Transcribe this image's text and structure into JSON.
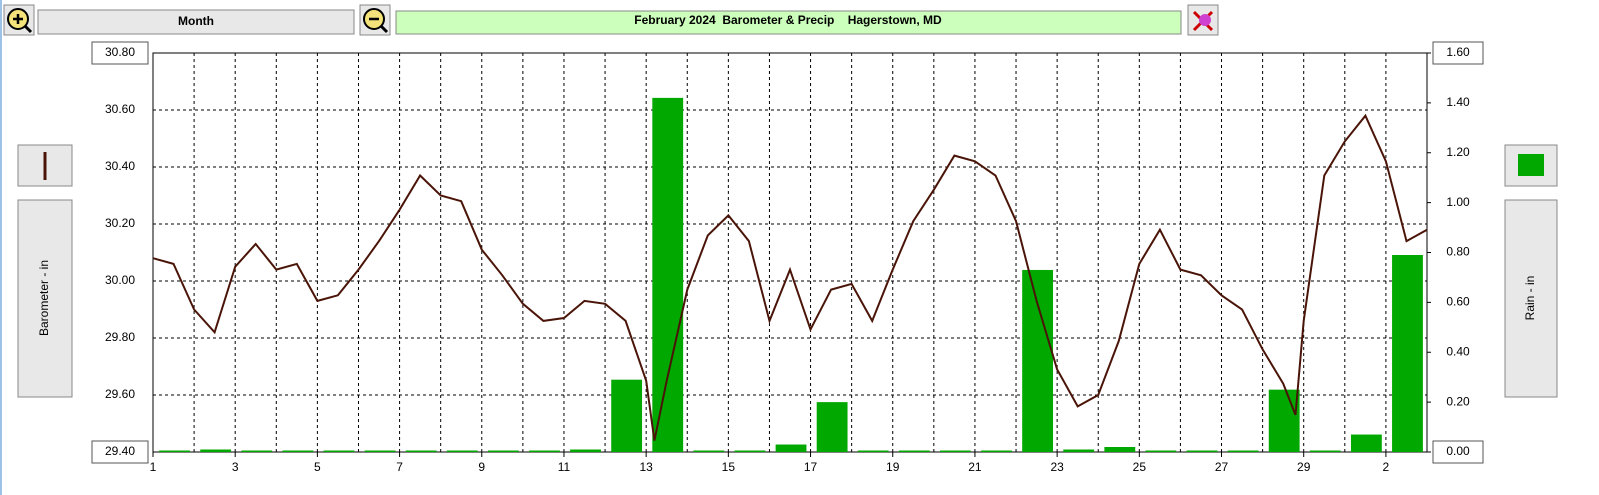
{
  "toolbar": {
    "period": "Month"
  },
  "chart_data": {
    "type": "combo",
    "title": "February 2024  Barometer & Precip    Hagerstown, MD",
    "ylabel": "Barometer - in",
    "y2label": "Rain - in",
    "xlim": [
      1,
      32
    ],
    "xticks": [
      1,
      3,
      5,
      7,
      9,
      11,
      13,
      15,
      17,
      19,
      21,
      23,
      25,
      27,
      29,
      {
        "value": 31,
        "label": "2"
      }
    ],
    "xminorticks": [
      2,
      4,
      6,
      8,
      10,
      12,
      14,
      16,
      18,
      20,
      22,
      24,
      26,
      28,
      30,
      32
    ],
    "ylim": [
      29.4,
      30.8
    ],
    "yticks": [
      {
        "value": 29.4,
        "label": "29.40"
      },
      {
        "value": 29.6,
        "label": "29.60"
      },
      {
        "value": 29.8,
        "label": "29.80"
      },
      {
        "value": 30.0,
        "label": "30.00"
      },
      {
        "value": 30.2,
        "label": "30.20"
      },
      {
        "value": 30.4,
        "label": "30.40"
      },
      {
        "value": 30.6,
        "label": "30.60"
      },
      {
        "value": 30.8,
        "label": "30.80"
      }
    ],
    "y2lim": [
      0,
      1.6
    ],
    "y2ticks": [
      {
        "value": 0,
        "label": "0.00"
      },
      {
        "value": 0.2,
        "label": "0.20"
      },
      {
        "value": 0.4,
        "label": "0.40"
      },
      {
        "value": 0.6,
        "label": "0.60"
      },
      {
        "value": 0.8,
        "label": "0.80"
      },
      {
        "value": 1.0,
        "label": "1.00"
      },
      {
        "value": 1.2,
        "label": "1.20"
      },
      {
        "value": 1.4,
        "label": "1.40"
      },
      {
        "value": 1.6,
        "label": "1.60"
      }
    ],
    "grid": true,
    "series": [
      {
        "type": "line",
        "axis": "y",
        "color": "#4a1508",
        "x": [
          1,
          1.5,
          2,
          2.5,
          3,
          3.5,
          4,
          4.5,
          5,
          5.5,
          6,
          6.5,
          7,
          7.5,
          8,
          8.5,
          9,
          9.5,
          10,
          10.5,
          11,
          11.5,
          12,
          12.5,
          13,
          13.2,
          13.5,
          14,
          14.5,
          15,
          15.5,
          16,
          16.5,
          17,
          17.5,
          18,
          18.5,
          19,
          19.5,
          20,
          20.5,
          21,
          21.5,
          22,
          22.5,
          23,
          23.5,
          24,
          24.5,
          25,
          25.5,
          26,
          26.5,
          27,
          27.5,
          28,
          28.5,
          28.8,
          29,
          29.5,
          30,
          30.5,
          31,
          31.5,
          32
        ],
        "values": [
          30.08,
          30.06,
          29.9,
          29.82,
          30.05,
          30.13,
          30.04,
          30.06,
          29.93,
          29.95,
          30.04,
          30.14,
          30.25,
          30.37,
          30.3,
          30.28,
          30.11,
          30.02,
          29.92,
          29.86,
          29.87,
          29.93,
          29.92,
          29.86,
          29.65,
          29.44,
          29.65,
          29.97,
          30.16,
          30.23,
          30.14,
          29.86,
          30.04,
          29.83,
          29.97,
          29.99,
          29.86,
          30.04,
          30.21,
          30.32,
          30.44,
          30.42,
          30.37,
          30.21,
          29.93,
          29.69,
          29.56,
          29.6,
          29.79,
          30.06,
          30.18,
          30.04,
          30.02,
          29.95,
          29.9,
          29.76,
          29.64,
          29.53,
          29.86,
          30.37,
          30.49,
          30.58,
          30.42,
          30.14,
          30.18
        ]
      },
      {
        "type": "bar",
        "axis": "y2",
        "color": "#00a800",
        "x": [
          1,
          2,
          3,
          4,
          5,
          6,
          7,
          8,
          9,
          10,
          11,
          12,
          13,
          14,
          15,
          16,
          17,
          18,
          19,
          20,
          21,
          22,
          23,
          24,
          25,
          26,
          27,
          28,
          29,
          30,
          31
        ],
        "values": [
          0,
          0.01,
          0,
          0,
          0,
          0,
          0,
          0,
          0,
          0,
          0.01,
          0.29,
          1.42,
          0,
          0,
          0.03,
          0.2,
          0,
          0,
          0,
          0,
          0.73,
          0.01,
          0.02,
          0,
          0,
          0,
          0.25,
          0,
          0.07,
          0.79
        ]
      }
    ]
  }
}
